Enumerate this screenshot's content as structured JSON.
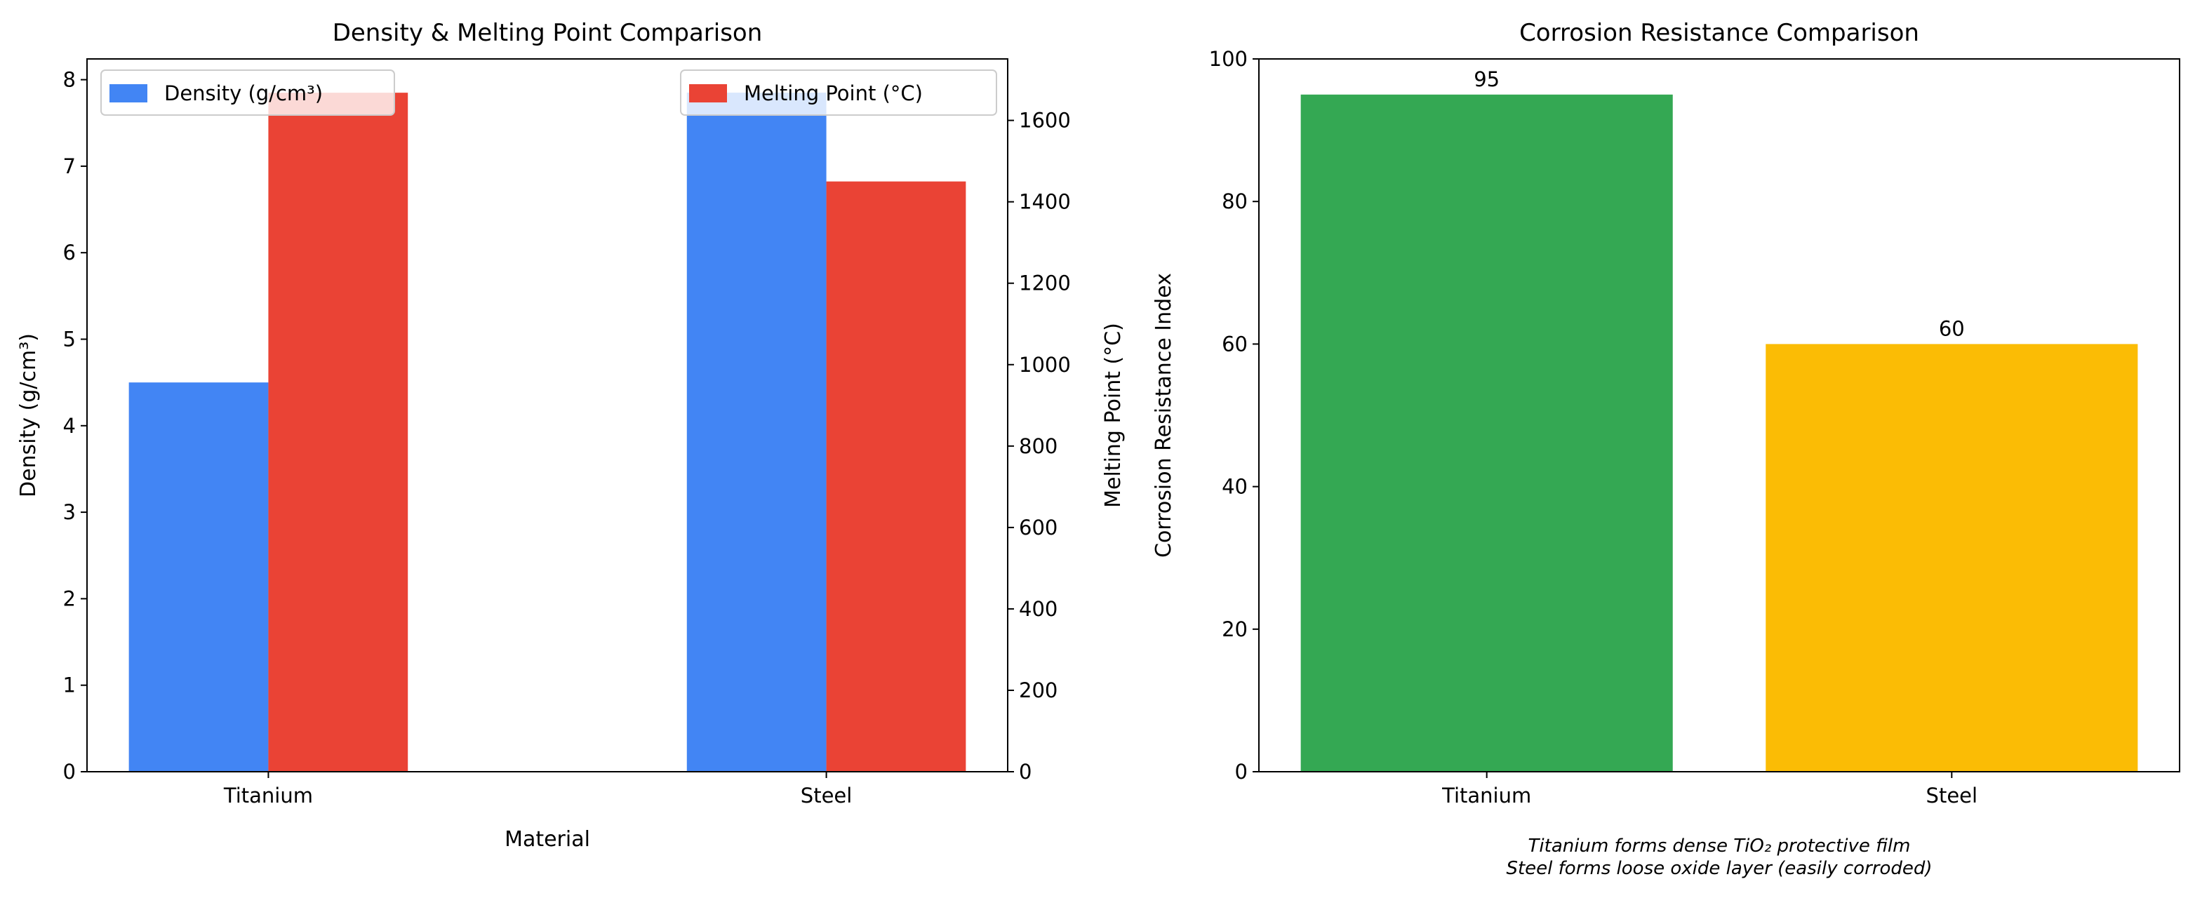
{
  "chart_data": [
    {
      "type": "bar",
      "title": "Density & Melting Point Comparison",
      "xlabel": "Material",
      "ylabel": "Density (g/cm³)",
      "y2label": "Melting Point (°C)",
      "categories": [
        "Titanium",
        "Steel"
      ],
      "ylim": [
        0,
        8.24
      ],
      "y2lim": [
        0,
        1751
      ],
      "yticks": [
        0,
        1,
        2,
        3,
        4,
        5,
        6,
        7,
        8
      ],
      "y2ticks": [
        0,
        200,
        400,
        600,
        800,
        1000,
        1200,
        1400,
        1600
      ],
      "series": [
        {
          "name": "Density (g/cm³)",
          "values": [
            4.5,
            7.85
          ],
          "color": "#4285F4",
          "axis": "left"
        },
        {
          "name": "Melting Point (°C)",
          "values": [
            1668,
            1450
          ],
          "color": "#EA4335",
          "axis": "right"
        }
      ],
      "legend": [
        "upper-left",
        "upper-right"
      ],
      "grid": false
    },
    {
      "type": "bar",
      "title": "Corrosion Resistance Comparison",
      "xlabel": "",
      "ylabel": "Corrosion Resistance Index",
      "categories": [
        "Titanium",
        "Steel"
      ],
      "values": [
        95,
        60
      ],
      "data_labels": [
        "95",
        "60"
      ],
      "colors": [
        "#34A853",
        "#FBBC05"
      ],
      "ylim": [
        0,
        100
      ],
      "yticks": [
        0,
        20,
        40,
        60,
        80,
        100
      ],
      "grid": false,
      "annotation": [
        "Titanium forms dense TiO₂ protective film",
        "Steel forms loose oxide layer (easily corroded)"
      ]
    }
  ]
}
